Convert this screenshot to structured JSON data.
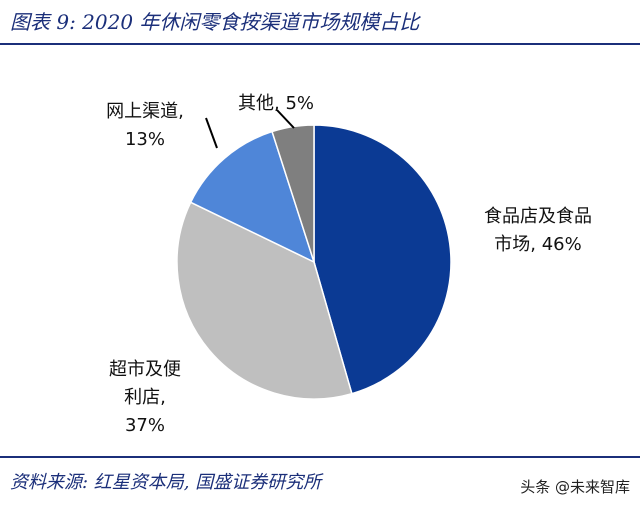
{
  "header": {
    "title": "图表 9:  2020 年休闲零食按渠道市场规模占比"
  },
  "chart_data": {
    "type": "pie",
    "title": "2020 年休闲零食按渠道市场规模占比",
    "slices": [
      {
        "name": "食品店及食品市场",
        "label_lines": [
          "食品店及食品",
          "市场, 46%"
        ],
        "value": 46,
        "color": "#0b3a94"
      },
      {
        "name": "超市及便利店",
        "label_lines": [
          "超市及便",
          "利店,",
          "37%"
        ],
        "value": 37,
        "color": "#bfbfbf"
      },
      {
        "name": "网上渠道",
        "label_lines": [
          "网上渠道,",
          "13%"
        ],
        "value": 13,
        "color": "#4f86d8"
      },
      {
        "name": "其他",
        "label_lines": [
          "其他, 5%"
        ],
        "value": 5,
        "color": "#7f7f7f"
      }
    ]
  },
  "footer": {
    "source": "资料来源:  红星资本局,  国盛证券研究所",
    "watermark": "头条 @未来智库"
  }
}
